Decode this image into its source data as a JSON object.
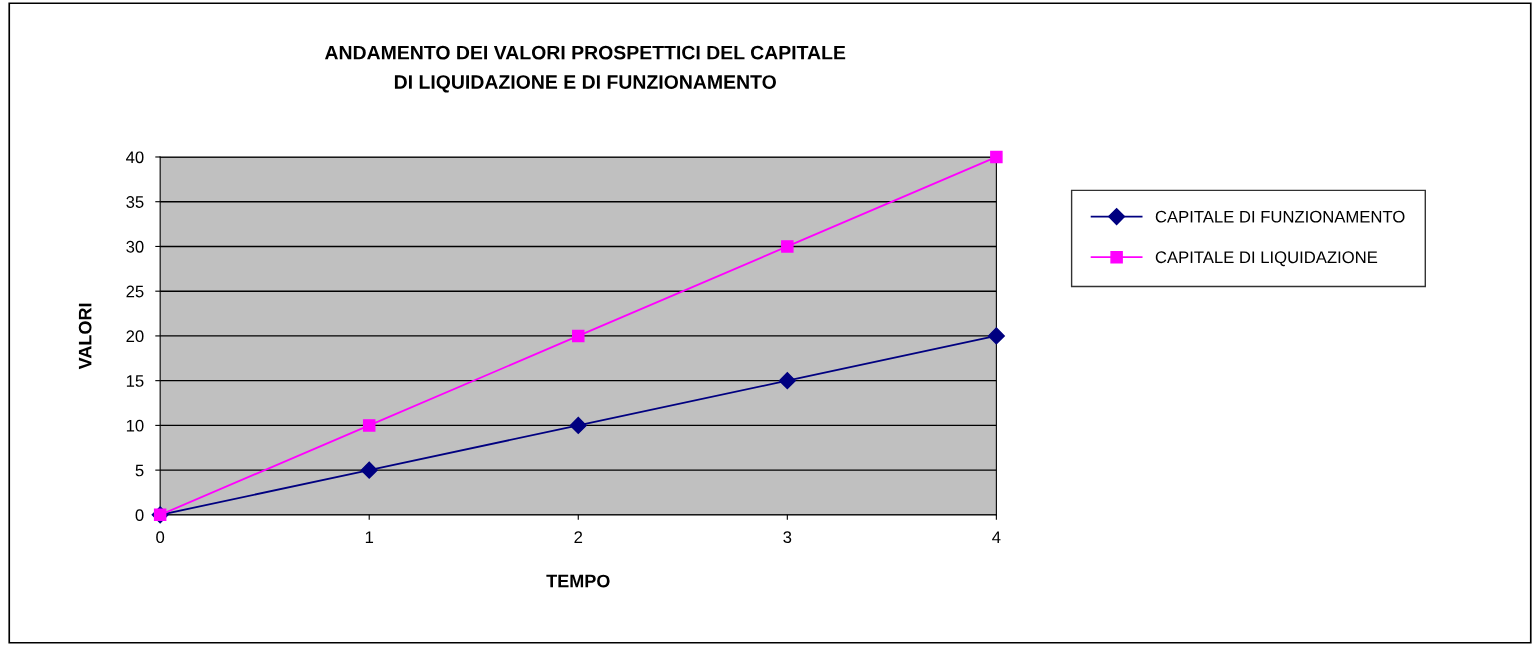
{
  "chart_data": {
    "type": "line",
    "title": "ANDAMENTO DEI VALORI PROSPETTICI DEL CAPITALE\nDI LIQUIDAZIONE E DI FUNZIONAMENTO",
    "xlabel": "TEMPO",
    "ylabel": "VALORI",
    "x": [
      0,
      1,
      2,
      3,
      4
    ],
    "series": [
      {
        "name": "CAPITALE DI FUNZIONAMENTO",
        "color": "#000080",
        "marker": "diamond",
        "values": [
          0,
          5,
          10,
          15,
          20
        ]
      },
      {
        "name": "CAPITALE DI LIQUIDAZIONE",
        "color": "#ff00ff",
        "marker": "square",
        "values": [
          0,
          10,
          20,
          30,
          40
        ]
      }
    ],
    "xlim": [
      0,
      4
    ],
    "xticks": [
      0,
      1,
      2,
      3,
      4
    ],
    "ylim": [
      0,
      40
    ],
    "yticks": [
      0,
      5,
      10,
      15,
      20,
      25,
      30,
      35,
      40
    ],
    "grid": "y",
    "legend": "right",
    "line_style": "solid"
  }
}
